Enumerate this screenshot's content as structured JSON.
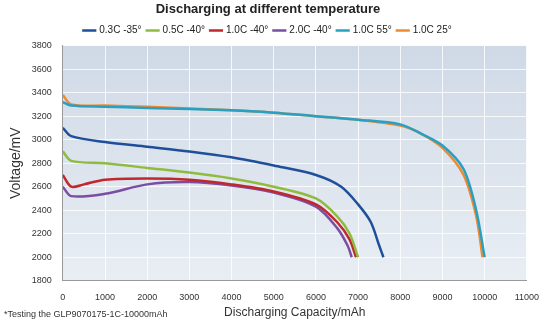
{
  "chart_data": {
    "type": "line",
    "title": "Discharging at different temperature",
    "x_label": "Discharging Capacity/mAh",
    "y_label": "Voltage/mV",
    "footnote": "*Testing the GLP9070175-1C-10000mAh",
    "xlim": [
      0,
      11000
    ],
    "xticks": [
      0,
      1000,
      2000,
      3000,
      4000,
      5000,
      6000,
      7000,
      8000,
      9000,
      10000,
      11000
    ],
    "ylim": [
      1800,
      3800
    ],
    "yticks": [
      1800,
      2000,
      2200,
      2400,
      2600,
      2800,
      3000,
      3200,
      3400,
      3600,
      3800
    ],
    "grid": true,
    "legend": "top",
    "series": [
      {
        "name": "0.3C -35°",
        "color": "#1f4e9a",
        "x": [
          0,
          200,
          1000,
          2000,
          3000,
          4000,
          5000,
          6000,
          6600,
          7000,
          7300,
          7500,
          7600
        ],
        "values": [
          3100,
          3030,
          2980,
          2940,
          2900,
          2850,
          2780,
          2700,
          2600,
          2450,
          2300,
          2100,
          2000
        ]
      },
      {
        "name": "0.5C -40°",
        "color": "#8fbc3f",
        "x": [
          0,
          200,
          1000,
          2000,
          3000,
          4000,
          5000,
          6000,
          6500,
          6800,
          7000
        ],
        "values": [
          2900,
          2820,
          2800,
          2760,
          2720,
          2670,
          2600,
          2500,
          2350,
          2200,
          2000
        ]
      },
      {
        "name": "1.0C -40°",
        "color": "#c0282d",
        "x": [
          0,
          200,
          500,
          1000,
          2000,
          3000,
          4000,
          5000,
          6000,
          6500,
          6800,
          6950
        ],
        "values": [
          2700,
          2600,
          2620,
          2660,
          2670,
          2660,
          2620,
          2560,
          2450,
          2300,
          2150,
          2000
        ]
      },
      {
        "name": "2.0C -40°",
        "color": "#7b4ea3",
        "x": [
          0,
          200,
          1000,
          2000,
          3000,
          4000,
          5000,
          6000,
          6500,
          6750,
          6850
        ],
        "values": [
          2600,
          2520,
          2540,
          2620,
          2640,
          2610,
          2550,
          2430,
          2250,
          2100,
          2000
        ]
      },
      {
        "name": "1.0C 55°",
        "color": "#2aa0c0",
        "x": [
          0,
          200,
          1000,
          2000,
          4000,
          5000,
          6000,
          7000,
          8000,
          8500,
          9000,
          9500,
          9800,
          10000
        ],
        "values": [
          3320,
          3290,
          3280,
          3270,
          3250,
          3230,
          3200,
          3170,
          3130,
          3050,
          2950,
          2750,
          2400,
          2000
        ]
      },
      {
        "name": "1.0C 25°",
        "color": "#f08a30",
        "x": [
          0,
          200,
          1000,
          2000,
          4000,
          5000,
          6000,
          7000,
          8000,
          8500,
          9000,
          9500,
          9800,
          9950
        ],
        "values": [
          3380,
          3300,
          3290,
          3280,
          3250,
          3230,
          3200,
          3170,
          3120,
          3050,
          2930,
          2700,
          2350,
          2000
        ]
      }
    ]
  }
}
